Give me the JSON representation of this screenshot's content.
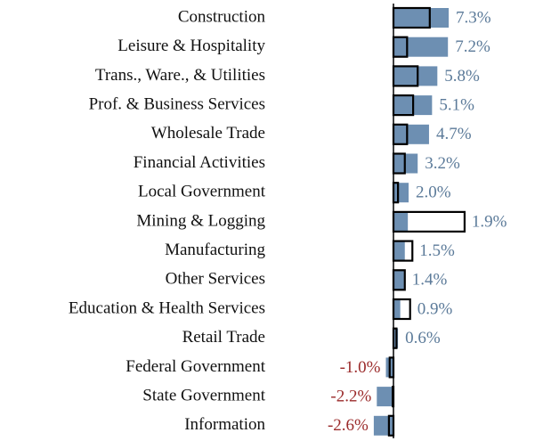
{
  "chart_data": {
    "type": "hbar",
    "categories": [
      "Construction",
      "Leisure & Hospitality",
      "Trans., Ware., & Utilities",
      "Prof. & Business Services",
      "Wholesale Trade",
      "Financial Activities",
      "Local Government",
      "Mining & Logging",
      "Manufacturing",
      "Other Services",
      "Education & Health Services",
      "Retail Trade",
      "Federal Government",
      "State Government",
      "Information"
    ],
    "series": [
      {
        "color": "#6d8fb2",
        "style": "filled",
        "values": [
          7.3,
          7.2,
          5.8,
          5.1,
          4.7,
          3.2,
          2.0,
          1.9,
          1.5,
          1.4,
          0.9,
          0.6,
          -1.0,
          -2.2,
          -2.6
        ],
        "value_labels": [
          "7.3%",
          "7.2%",
          "5.8%",
          "5.1%",
          "4.7%",
          "3.2%",
          "2.0%",
          "1.9%",
          "1.5%",
          "1.4%",
          "0.9%",
          "0.6%",
          "-1.0%",
          "-2.2%",
          "-2.6%"
        ]
      },
      {
        "color": "#000000",
        "style": "outline",
        "values": [
          4.8,
          1.8,
          3.2,
          2.6,
          1.8,
          1.5,
          0.6,
          9.4,
          2.5,
          1.5,
          2.2,
          0.4,
          -0.5,
          -0.1,
          -0.6
        ]
      }
    ],
    "label_color": "#5b7a99",
    "negative_label_color": "#9b2b2b",
    "xlim": [
      -3,
      10
    ]
  }
}
